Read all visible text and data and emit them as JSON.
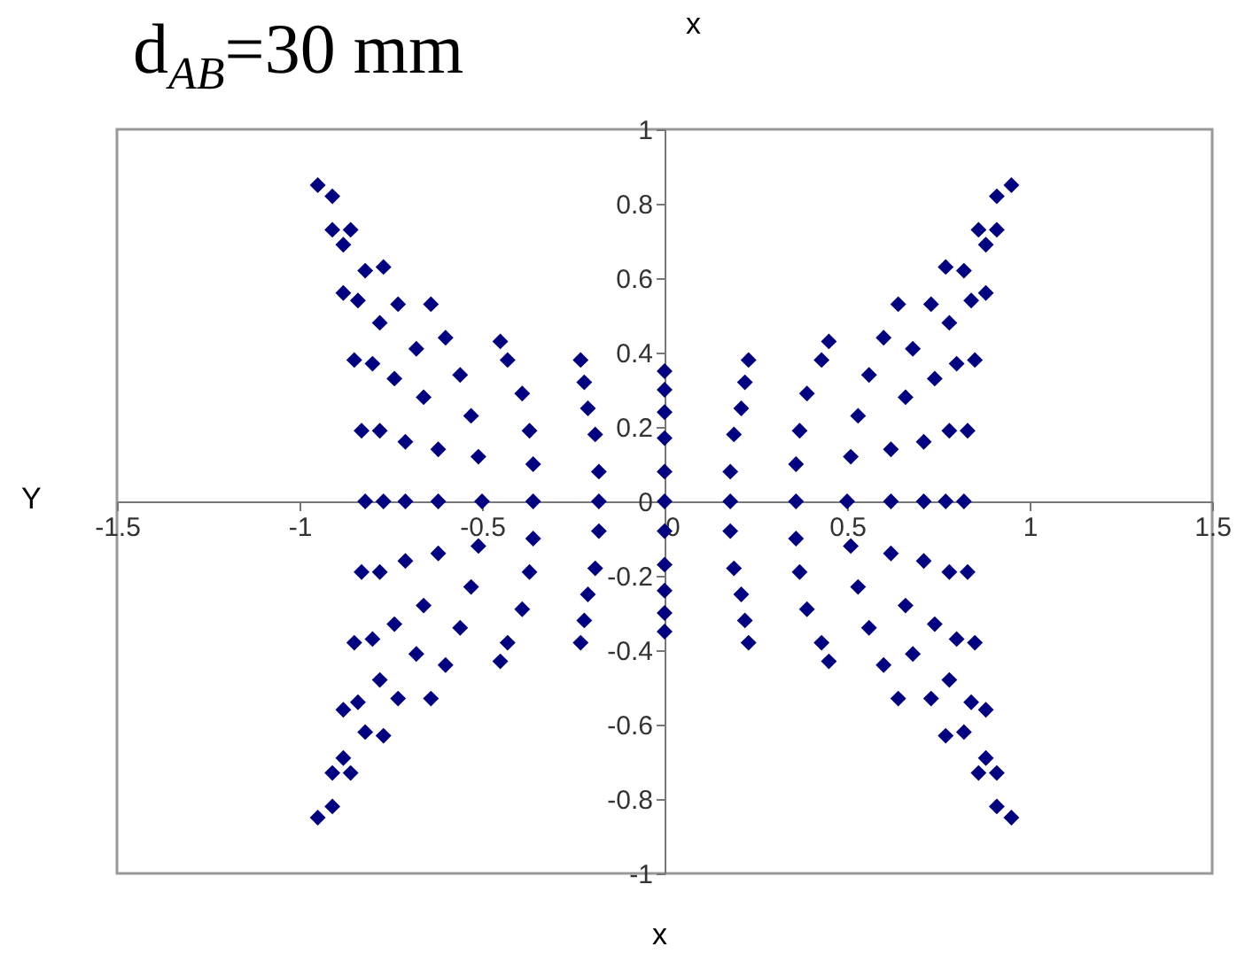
{
  "chart_data": {
    "type": "scatter",
    "title": "d$_{AB}$=30 mm",
    "xlabel": "x",
    "ylabel": "Y",
    "annotations": [
      "x"
    ],
    "marker": "diamond",
    "color": "#000080",
    "xlim": [
      -1.5,
      1.5
    ],
    "ylim": [
      -1,
      1
    ],
    "xticks": [
      -1.5,
      -1,
      -0.5,
      0,
      0.5,
      1,
      1.5
    ],
    "yticks": [
      -1,
      -0.8,
      -0.6,
      -0.4,
      -0.2,
      0,
      0.2,
      0.4,
      0.6,
      0.8,
      1
    ],
    "x": [
      0,
      0,
      0,
      0,
      0,
      0,
      0,
      0,
      0,
      0,
      0,
      0.18,
      -0.18,
      0.36,
      -0.36,
      0.5,
      -0.5,
      0.62,
      -0.62,
      0.71,
      -0.71,
      0.77,
      -0.77,
      0.82,
      -0.82,
      0.23,
      0.22,
      0.21,
      0.19,
      0.18,
      0.45,
      0.43,
      0.39,
      0.37,
      0.36,
      0.64,
      0.6,
      0.56,
      0.53,
      0.51,
      0.73,
      0.68,
      0.66,
      0.62,
      0.77,
      0.78,
      0.74,
      0.71,
      0.82,
      0.84,
      0.8,
      0.78,
      0.86,
      0.88,
      0.85,
      0.83,
      0.91,
      0.95,
      0.91,
      0.88,
      -0.23,
      -0.22,
      -0.21,
      -0.19,
      -0.18,
      -0.45,
      -0.43,
      -0.39,
      -0.37,
      -0.36,
      -0.64,
      -0.6,
      -0.56,
      -0.53,
      -0.51,
      -0.73,
      -0.68,
      -0.66,
      -0.62,
      -0.77,
      -0.78,
      -0.74,
      -0.71,
      -0.82,
      -0.84,
      -0.8,
      -0.78,
      -0.86,
      -0.88,
      -0.85,
      -0.83,
      -0.91,
      -0.95,
      -0.91,
      -0.88,
      0.23,
      0.22,
      0.21,
      0.19,
      0.18,
      0.45,
      0.43,
      0.39,
      0.37,
      0.36,
      0.64,
      0.6,
      0.56,
      0.53,
      0.51,
      0.73,
      0.68,
      0.66,
      0.62,
      0.77,
      0.78,
      0.74,
      0.71,
      0.82,
      0.84,
      0.8,
      0.78,
      0.86,
      0.88,
      0.85,
      0.83,
      0.91,
      0.95,
      0.91,
      0.88,
      -0.23,
      -0.22,
      -0.21,
      -0.19,
      -0.18,
      -0.45,
      -0.43,
      -0.39,
      -0.37,
      -0.36,
      -0.64,
      -0.6,
      -0.56,
      -0.53,
      -0.51,
      -0.73,
      -0.68,
      -0.66,
      -0.62,
      -0.77,
      -0.78,
      -0.74,
      -0.71,
      -0.82,
      -0.84,
      -0.8,
      -0.78,
      -0.86,
      -0.88,
      -0.85,
      -0.83,
      -0.91,
      -0.95,
      -0.91,
      -0.88
    ],
    "values": [
      0.35,
      0.3,
      0.24,
      0.17,
      0.08,
      -0.35,
      -0.3,
      -0.24,
      -0.17,
      -0.08,
      0,
      0,
      0,
      0,
      0,
      0,
      0,
      0,
      0,
      0,
      0,
      0,
      0,
      0,
      0,
      0.38,
      0.32,
      0.25,
      0.18,
      0.08,
      0.43,
      0.38,
      0.29,
      0.19,
      0.1,
      0.53,
      0.44,
      0.34,
      0.23,
      0.12,
      0.53,
      0.41,
      0.28,
      0.14,
      0.63,
      0.48,
      0.33,
      0.16,
      0.62,
      0.54,
      0.37,
      0.19,
      0.73,
      0.56,
      0.38,
      0.19,
      0.82,
      0.85,
      0.73,
      0.69,
      0.38,
      0.32,
      0.25,
      0.18,
      0.08,
      0.43,
      0.38,
      0.29,
      0.19,
      0.1,
      0.53,
      0.44,
      0.34,
      0.23,
      0.12,
      0.53,
      0.41,
      0.28,
      0.14,
      0.63,
      0.48,
      0.33,
      0.16,
      0.62,
      0.54,
      0.37,
      0.19,
      0.73,
      0.56,
      0.38,
      0.19,
      0.82,
      0.85,
      0.73,
      0.69,
      -0.38,
      -0.32,
      -0.25,
      -0.18,
      -0.08,
      -0.43,
      -0.38,
      -0.29,
      -0.19,
      -0.1,
      -0.53,
      -0.44,
      -0.34,
      -0.23,
      -0.12,
      -0.53,
      -0.41,
      -0.28,
      -0.14,
      -0.63,
      -0.48,
      -0.33,
      -0.16,
      -0.62,
      -0.54,
      -0.37,
      -0.19,
      -0.73,
      -0.56,
      -0.38,
      -0.19,
      -0.82,
      -0.85,
      -0.73,
      -0.69,
      -0.38,
      -0.32,
      -0.25,
      -0.18,
      -0.08,
      -0.43,
      -0.38,
      -0.29,
      -0.19,
      -0.1,
      -0.53,
      -0.44,
      -0.34,
      -0.23,
      -0.12,
      -0.53,
      -0.41,
      -0.28,
      -0.14,
      -0.63,
      -0.48,
      -0.33,
      -0.16,
      -0.62,
      -0.54,
      -0.37,
      -0.19,
      -0.73,
      -0.56,
      -0.38,
      -0.19,
      -0.82,
      -0.85,
      -0.73,
      -0.69
    ]
  }
}
